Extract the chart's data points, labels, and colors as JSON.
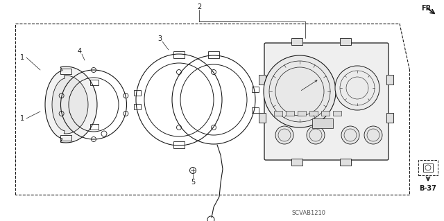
{
  "bg_color": "#ffffff",
  "lc": "#1a1a1a",
  "figsize": [
    6.4,
    3.19
  ],
  "dpi": 100,
  "watermark": "SCVAB1210",
  "page_ref": "B-37",
  "fr_label": "FR."
}
